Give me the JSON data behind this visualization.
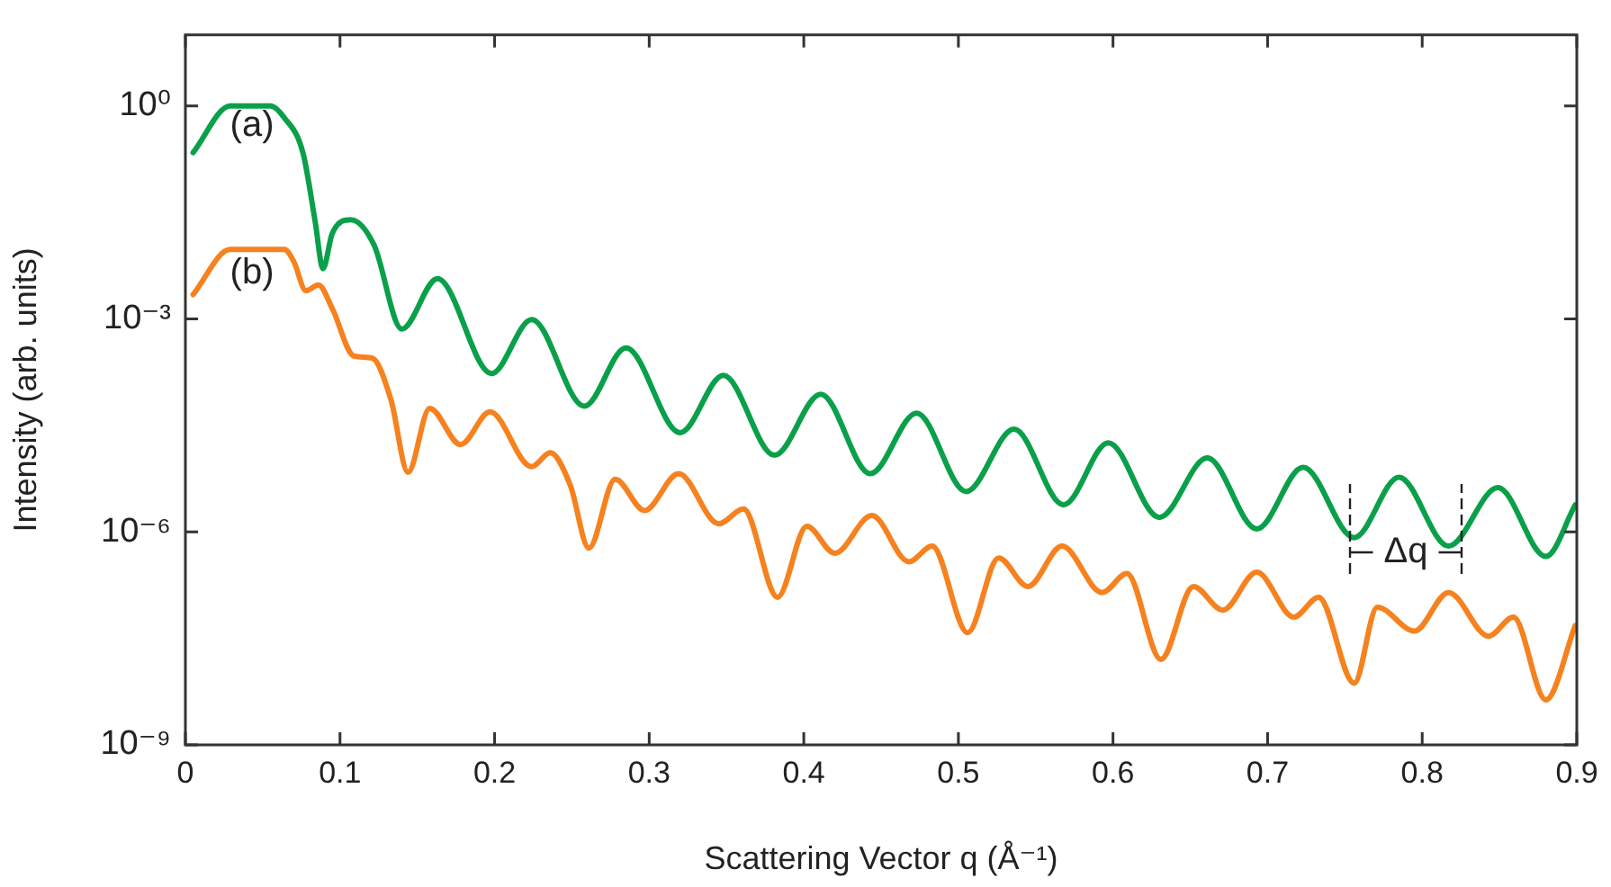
{
  "chart_data": {
    "type": "line",
    "xlabel": "Scattering Vector q (Å⁻¹)",
    "ylabel": "Intensity (arb. units)",
    "log": "y",
    "xlim": [
      0,
      0.9
    ],
    "xticks": [
      0,
      0.1,
      0.2,
      0.3,
      0.4,
      0.5,
      0.6,
      0.7,
      0.8,
      0.9
    ],
    "ylim": [
      1e-09,
      10
    ],
    "yticks": [
      {
        "value": 1,
        "label": "10⁰"
      },
      {
        "value": 0.001,
        "label": "10⁻³"
      },
      {
        "value": 1e-06,
        "label": "10⁻⁶"
      },
      {
        "value": 1e-09,
        "label": "10⁻⁹"
      }
    ],
    "legend": false,
    "marker": "none",
    "line_style": "solid",
    "series": [
      {
        "color": "#0aa04a",
        "x": [
          0.005,
          0.029,
          0.055,
          0.064,
          0.076,
          0.084,
          0.089,
          0.095,
          0.107,
          0.122,
          0.14,
          0.163,
          0.198,
          0.224,
          0.258,
          0.285,
          0.32,
          0.348,
          0.381,
          0.411,
          0.443,
          0.473,
          0.505,
          0.536,
          0.568,
          0.597,
          0.63,
          0.661,
          0.693,
          0.723,
          0.756,
          0.785,
          0.817,
          0.849,
          0.88,
          0.899
        ],
        "values": [
          0.22,
          1,
          1,
          0.68,
          0.22,
          0.023,
          0.0051,
          0.016,
          0.025,
          0.011,
          0.00072,
          0.0037,
          0.00017,
          0.00098,
          5.9e-05,
          0.00039,
          2.5e-05,
          0.00016,
          1.2e-05,
          8.7e-05,
          6.6e-06,
          4.7e-05,
          3.7e-06,
          2.8e-05,
          2.4e-06,
          1.8e-05,
          1.6e-06,
          1.1e-05,
          1.1e-06,
          8.1e-06,
          8.3e-07,
          5.9e-06,
          6.3e-07,
          4.2e-06,
          4.5e-07,
          2.4e-06
        ]
      },
      {
        "color": "#f5821f",
        "x": [
          0.005,
          0.029,
          0.064,
          0.07,
          0.078,
          0.086,
          0.095,
          0.109,
          0.121,
          0.133,
          0.144,
          0.158,
          0.178,
          0.197,
          0.224,
          0.236,
          0.249,
          0.261,
          0.278,
          0.297,
          0.319,
          0.345,
          0.361,
          0.383,
          0.402,
          0.42,
          0.444,
          0.468,
          0.483,
          0.506,
          0.526,
          0.545,
          0.567,
          0.593,
          0.609,
          0.631,
          0.652,
          0.671,
          0.693,
          0.717,
          0.733,
          0.756,
          0.771,
          0.795,
          0.817,
          0.843,
          0.859,
          0.88,
          0.899
        ],
        "values": [
          0.0022,
          0.0095,
          0.0095,
          0.0065,
          0.0025,
          0.003,
          0.0014,
          0.0003,
          0.00028,
          7.2e-05,
          6.9e-06,
          5.5e-05,
          1.7e-05,
          4.9e-05,
          8.3e-06,
          1.3e-05,
          4.5e-06,
          5.9e-07,
          5.5e-06,
          2e-06,
          6.6e-06,
          1.3e-06,
          2.1e-06,
          1.2e-07,
          1.2e-06,
          5e-07,
          1.7e-06,
          3.8e-07,
          6.3e-07,
          3.8e-08,
          4.3e-07,
          1.7e-07,
          6.3e-07,
          1.4e-07,
          2.6e-07,
          1.6e-08,
          1.7e-07,
          7.9e-08,
          2.7e-07,
          6.3e-08,
          1.2e-07,
          7.4e-09,
          8.7e-08,
          4e-08,
          1.4e-07,
          3.4e-08,
          6.3e-08,
          4.3e-09,
          4.8e-08
        ]
      }
    ],
    "annotations": [
      "(a)",
      "(b)",
      "Δq"
    ]
  }
}
